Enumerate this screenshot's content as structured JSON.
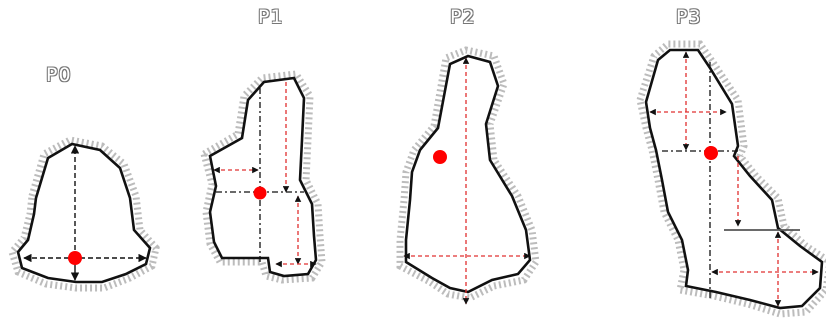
{
  "panels": [
    {
      "id": "p0",
      "label": "P0"
    },
    {
      "id": "p1",
      "label": "P1"
    },
    {
      "id": "p2",
      "label": "P2"
    },
    {
      "id": "p3",
      "label": "P3"
    }
  ],
  "colors": {
    "outline": "#111111",
    "noise": "#b5b5b5",
    "axis_black": "#111111",
    "axis_red": "#e03030",
    "marker": "#ff0000"
  }
}
